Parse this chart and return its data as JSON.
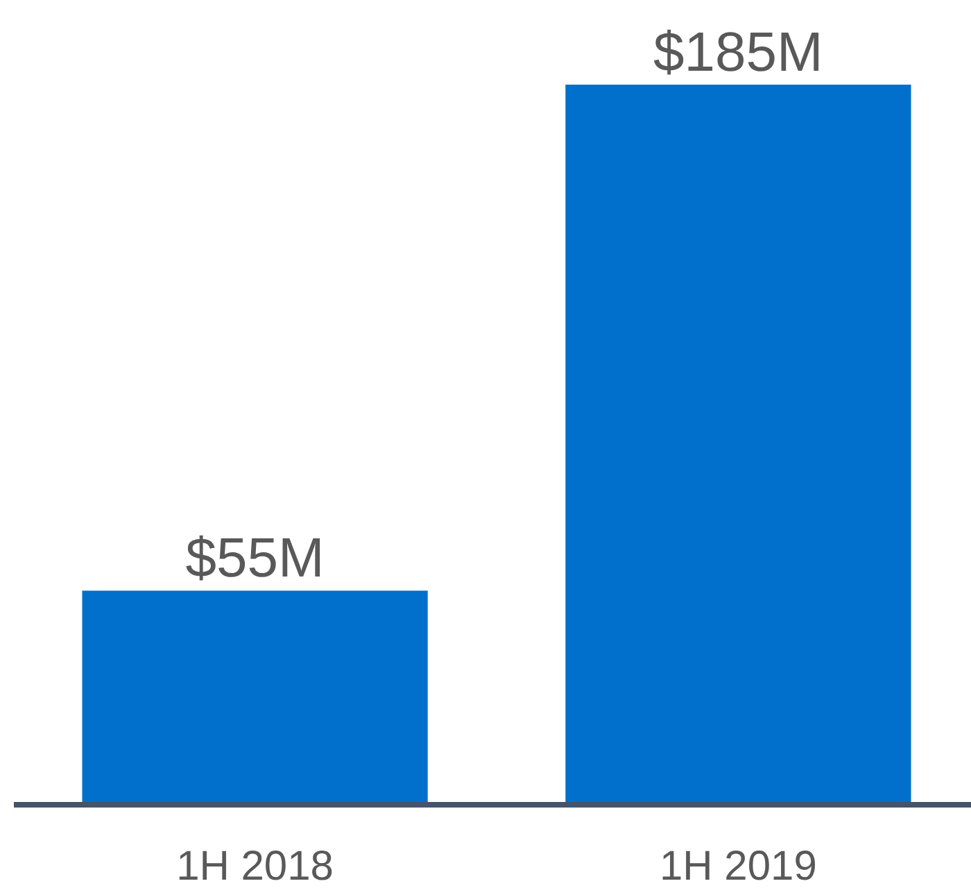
{
  "chart_data": {
    "type": "bar",
    "categories": [
      "1H 2018",
      "1H 2019"
    ],
    "values": [
      55,
      185
    ],
    "value_labels": [
      "$55M",
      "$185M"
    ],
    "color": "#0070cc"
  }
}
